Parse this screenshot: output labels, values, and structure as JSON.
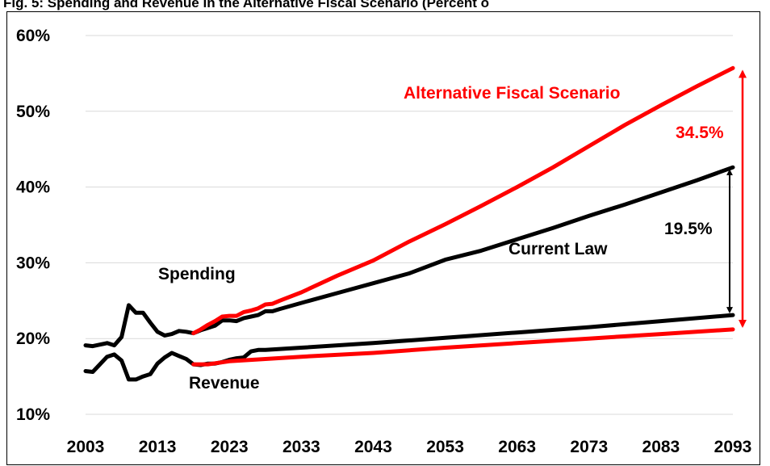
{
  "title": "Fig. 5: Spending and Revenue in the Alternative Fiscal Scenario (Percent o",
  "colors": {
    "current_law": "#000000",
    "alternative": "#ff0000",
    "grid": "#d9d9d9"
  },
  "chart_data": {
    "type": "line",
    "title": "Fig. 5: Spending and Revenue in the Alternative Fiscal Scenario (Percent o",
    "xlabel": "",
    "ylabel": "",
    "xlim": [
      2003,
      2093
    ],
    "ylim": [
      10,
      60
    ],
    "x_ticks": [
      "2003",
      "2013",
      "2023",
      "2033",
      "2043",
      "2053",
      "2063",
      "2073",
      "2083",
      "2093"
    ],
    "y_ticks": [
      "10%",
      "20%",
      "30%",
      "40%",
      "50%",
      "60%"
    ],
    "grid": "horizontal",
    "series": [
      {
        "group": "current_law",
        "kind": "spending",
        "points": [
          [
            2003,
            19.1
          ],
          [
            2004,
            19.0
          ],
          [
            2005,
            19.2
          ],
          [
            2006,
            19.4
          ],
          [
            2007,
            19.1
          ],
          [
            2008,
            20.2
          ],
          [
            2009,
            24.4
          ],
          [
            2010,
            23.4
          ],
          [
            2011,
            23.4
          ],
          [
            2012,
            22.1
          ],
          [
            2013,
            20.9
          ],
          [
            2014,
            20.4
          ],
          [
            2015,
            20.6
          ],
          [
            2016,
            21.0
          ],
          [
            2017,
            20.9
          ],
          [
            2018,
            20.7
          ],
          [
            2019,
            21.1
          ],
          [
            2020,
            21.4
          ],
          [
            2021,
            21.7
          ],
          [
            2022,
            22.4
          ],
          [
            2023,
            22.4
          ],
          [
            2024,
            22.3
          ],
          [
            2025,
            22.7
          ],
          [
            2026,
            22.9
          ],
          [
            2027,
            23.1
          ],
          [
            2028,
            23.6
          ],
          [
            2029,
            23.6
          ],
          [
            2030,
            23.9
          ],
          [
            2033,
            24.7
          ],
          [
            2038,
            26.0
          ],
          [
            2043,
            27.3
          ],
          [
            2048,
            28.6
          ],
          [
            2053,
            30.4
          ],
          [
            2058,
            31.6
          ],
          [
            2063,
            33.1
          ],
          [
            2068,
            34.6
          ],
          [
            2073,
            36.2
          ],
          [
            2078,
            37.7
          ],
          [
            2083,
            39.3
          ],
          [
            2088,
            40.9
          ],
          [
            2093,
            42.6
          ]
        ]
      },
      {
        "group": "current_law",
        "kind": "revenue",
        "points": [
          [
            2003,
            15.7
          ],
          [
            2004,
            15.6
          ],
          [
            2005,
            16.6
          ],
          [
            2006,
            17.6
          ],
          [
            2007,
            17.9
          ],
          [
            2008,
            17.1
          ],
          [
            2009,
            14.6
          ],
          [
            2010,
            14.6
          ],
          [
            2011,
            15.0
          ],
          [
            2012,
            15.3
          ],
          [
            2013,
            16.7
          ],
          [
            2014,
            17.5
          ],
          [
            2015,
            18.1
          ],
          [
            2016,
            17.7
          ],
          [
            2017,
            17.3
          ],
          [
            2018,
            16.6
          ],
          [
            2019,
            16.5
          ],
          [
            2020,
            16.7
          ],
          [
            2021,
            16.7
          ],
          [
            2022,
            16.9
          ],
          [
            2023,
            17.2
          ],
          [
            2024,
            17.4
          ],
          [
            2025,
            17.5
          ],
          [
            2026,
            18.3
          ],
          [
            2027,
            18.5
          ],
          [
            2028,
            18.5
          ],
          [
            2033,
            18.8
          ],
          [
            2043,
            19.4
          ],
          [
            2053,
            20.1
          ],
          [
            2063,
            20.8
          ],
          [
            2073,
            21.5
          ],
          [
            2083,
            22.3
          ],
          [
            2093,
            23.1
          ]
        ]
      },
      {
        "group": "alternative",
        "kind": "spending",
        "points": [
          [
            2018,
            20.7
          ],
          [
            2019,
            21.2
          ],
          [
            2020,
            21.8
          ],
          [
            2021,
            22.3
          ],
          [
            2022,
            22.9
          ],
          [
            2023,
            23.0
          ],
          [
            2024,
            23.0
          ],
          [
            2025,
            23.5
          ],
          [
            2026,
            23.7
          ],
          [
            2027,
            24.0
          ],
          [
            2028,
            24.5
          ],
          [
            2029,
            24.6
          ],
          [
            2030,
            25.0
          ],
          [
            2033,
            26.1
          ],
          [
            2038,
            28.3
          ],
          [
            2043,
            30.3
          ],
          [
            2048,
            32.8
          ],
          [
            2053,
            35.1
          ],
          [
            2058,
            37.5
          ],
          [
            2063,
            40.0
          ],
          [
            2068,
            42.6
          ],
          [
            2073,
            45.4
          ],
          [
            2078,
            48.2
          ],
          [
            2083,
            50.8
          ],
          [
            2088,
            53.3
          ],
          [
            2093,
            55.7
          ]
        ]
      },
      {
        "group": "alternative",
        "kind": "revenue",
        "points": [
          [
            2018,
            16.6
          ],
          [
            2020,
            16.6
          ],
          [
            2023,
            17.0
          ],
          [
            2028,
            17.3
          ],
          [
            2033,
            17.6
          ],
          [
            2043,
            18.1
          ],
          [
            2053,
            18.8
          ],
          [
            2063,
            19.4
          ],
          [
            2073,
            20.0
          ],
          [
            2083,
            20.6
          ],
          [
            2093,
            21.2
          ]
        ]
      }
    ],
    "labels": {
      "spending": "Spending",
      "revenue": "Revenue",
      "current_law": "Current Law",
      "alternative": "Alternative Fiscal Scenario",
      "gap_current": "19.5%",
      "gap_alternative": "34.5%"
    },
    "gaps": [
      {
        "group": "current_law",
        "x": 2093,
        "from": 23.1,
        "to": 42.6
      },
      {
        "group": "alternative",
        "x": 2093,
        "from": 21.2,
        "to": 55.7
      }
    ]
  }
}
